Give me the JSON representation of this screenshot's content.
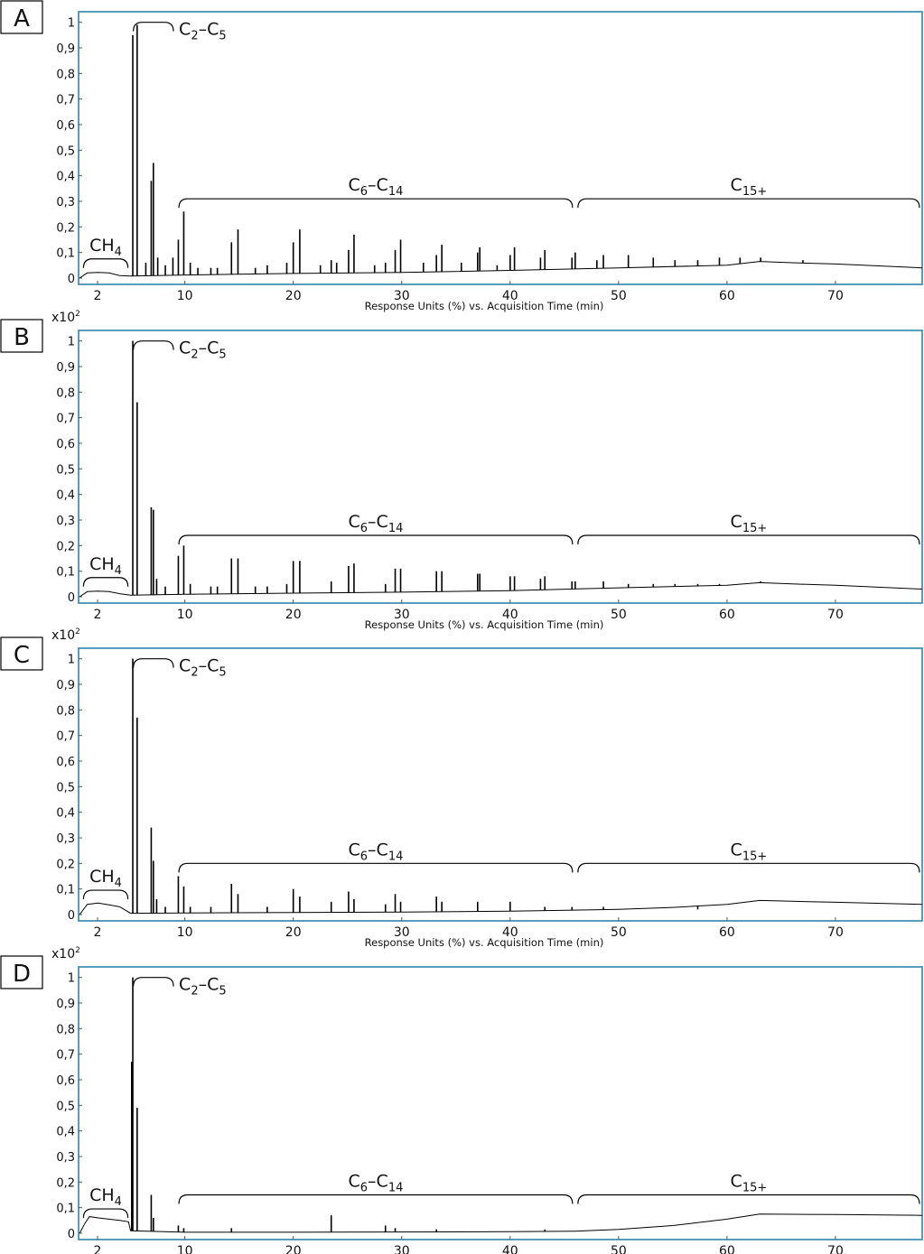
{
  "chart_data": [
    {
      "type": "line",
      "panel_label": "A",
      "multiplier": "",
      "xlabel": "Response Units (%) vs. Acquisition Time (min)",
      "xticks": [
        "2",
        "10",
        "20",
        "30",
        "40",
        "50",
        "60",
        "70"
      ],
      "yticks": [
        "0",
        "0,1",
        "0,2",
        "0,3",
        "0,4",
        "0,5",
        "0,6",
        "0,7",
        "0,8",
        "0,9",
        "1"
      ],
      "xlim": [
        0.2,
        78
      ],
      "ylim": [
        0,
        1.02
      ],
      "baseline": [
        [
          0.3,
          0.0
        ],
        [
          1,
          0.02
        ],
        [
          2,
          0.022
        ],
        [
          3,
          0.02
        ],
        [
          4,
          0.01
        ],
        [
          5,
          0.008
        ],
        [
          10,
          0.012
        ],
        [
          20,
          0.018
        ],
        [
          30,
          0.022
        ],
        [
          40,
          0.03
        ],
        [
          50,
          0.04
        ],
        [
          60,
          0.05
        ],
        [
          63,
          0.065
        ],
        [
          66,
          0.06
        ],
        [
          70,
          0.055
        ],
        [
          78,
          0.04
        ]
      ],
      "peaks": [
        [
          5.2,
          0.95
        ],
        [
          5.6,
          0.99
        ],
        [
          6.4,
          0.06
        ],
        [
          6.9,
          0.38
        ],
        [
          7.1,
          0.45
        ],
        [
          7.5,
          0.08
        ],
        [
          8.2,
          0.05
        ],
        [
          8.9,
          0.08
        ],
        [
          9.4,
          0.15
        ],
        [
          9.9,
          0.26
        ],
        [
          10.5,
          0.06
        ],
        [
          11.2,
          0.04
        ],
        [
          12.4,
          0.04
        ],
        [
          13.0,
          0.04
        ],
        [
          14.3,
          0.14
        ],
        [
          14.9,
          0.19
        ],
        [
          16.5,
          0.04
        ],
        [
          17.6,
          0.05
        ],
        [
          19.4,
          0.06
        ],
        [
          20.0,
          0.14
        ],
        [
          20.6,
          0.19
        ],
        [
          22.5,
          0.05
        ],
        [
          23.5,
          0.07
        ],
        [
          24.0,
          0.06
        ],
        [
          25.1,
          0.11
        ],
        [
          25.6,
          0.17
        ],
        [
          27.5,
          0.05
        ],
        [
          28.5,
          0.06
        ],
        [
          29.4,
          0.11
        ],
        [
          29.9,
          0.15
        ],
        [
          32.0,
          0.06
        ],
        [
          33.2,
          0.09
        ],
        [
          33.7,
          0.13
        ],
        [
          35.5,
          0.06
        ],
        [
          37.0,
          0.1
        ],
        [
          37.2,
          0.12
        ],
        [
          38.8,
          0.05
        ],
        [
          40.0,
          0.09
        ],
        [
          40.4,
          0.12
        ],
        [
          42.8,
          0.08
        ],
        [
          43.2,
          0.11
        ],
        [
          45.7,
          0.08
        ],
        [
          46.0,
          0.1
        ],
        [
          48.0,
          0.07
        ],
        [
          48.6,
          0.09
        ],
        [
          50.9,
          0.09
        ],
        [
          53.2,
          0.08
        ],
        [
          55.2,
          0.07
        ],
        [
          57.3,
          0.07
        ],
        [
          59.3,
          0.08
        ],
        [
          61.2,
          0.08
        ],
        [
          63.1,
          0.08
        ],
        [
          67.0,
          0.07
        ]
      ],
      "annotations": [
        {
          "base": "CH",
          "sub": "4",
          "x1": 0.4,
          "x2": 5.0,
          "y": 0.075
        },
        {
          "base": "C",
          "sub": "2",
          "mid": "–C",
          "sub2": "5",
          "x1": 5.0,
          "x2": 9.2,
          "y": 1.0
        },
        {
          "base": "C",
          "sub": "6",
          "mid": "–C",
          "sub2": "14",
          "x1": 9.2,
          "x2": 46.0,
          "y": 0.31
        },
        {
          "base": "C",
          "sub": "15+",
          "x1": 46.0,
          "x2": 78.0,
          "y": 0.31
        }
      ]
    },
    {
      "type": "line",
      "panel_label": "B",
      "multiplier": "x10",
      "multiplier_exp": "2",
      "xlabel": "Response Units (%) vs. Acquisition Time (min)",
      "xticks": [
        "2",
        "10",
        "20",
        "30",
        "40",
        "50",
        "60",
        "70"
      ],
      "yticks": [
        "0",
        "0,1",
        "0,2",
        "0,3",
        "0,4",
        "0,5",
        "0,6",
        "0,7",
        "0,8",
        "0,9",
        "1"
      ],
      "xlim": [
        0.2,
        78
      ],
      "ylim": [
        0,
        1.02
      ],
      "baseline": [
        [
          0.3,
          0.0
        ],
        [
          1,
          0.02
        ],
        [
          2,
          0.022
        ],
        [
          3,
          0.02
        ],
        [
          4,
          0.012
        ],
        [
          5,
          0.006
        ],
        [
          10,
          0.01
        ],
        [
          20,
          0.014
        ],
        [
          30,
          0.018
        ],
        [
          40,
          0.024
        ],
        [
          50,
          0.035
        ],
        [
          60,
          0.045
        ],
        [
          63,
          0.055
        ],
        [
          66,
          0.05
        ],
        [
          70,
          0.045
        ],
        [
          78,
          0.03
        ]
      ],
      "peaks": [
        [
          5.2,
          1.0
        ],
        [
          5.6,
          0.76
        ],
        [
          6.9,
          0.35
        ],
        [
          7.1,
          0.34
        ],
        [
          7.4,
          0.07
        ],
        [
          8.2,
          0.04
        ],
        [
          9.4,
          0.16
        ],
        [
          9.9,
          0.2
        ],
        [
          10.5,
          0.05
        ],
        [
          12.4,
          0.04
        ],
        [
          13.0,
          0.04
        ],
        [
          14.3,
          0.15
        ],
        [
          14.9,
          0.15
        ],
        [
          16.5,
          0.04
        ],
        [
          17.6,
          0.04
        ],
        [
          19.4,
          0.05
        ],
        [
          20.0,
          0.14
        ],
        [
          20.6,
          0.14
        ],
        [
          23.5,
          0.06
        ],
        [
          25.1,
          0.12
        ],
        [
          25.6,
          0.13
        ],
        [
          28.5,
          0.05
        ],
        [
          29.4,
          0.11
        ],
        [
          29.9,
          0.11
        ],
        [
          33.2,
          0.1
        ],
        [
          33.7,
          0.1
        ],
        [
          37.0,
          0.09
        ],
        [
          37.2,
          0.09
        ],
        [
          40.0,
          0.08
        ],
        [
          40.4,
          0.08
        ],
        [
          42.8,
          0.07
        ],
        [
          43.2,
          0.08
        ],
        [
          45.7,
          0.06
        ],
        [
          46.0,
          0.06
        ],
        [
          48.6,
          0.06
        ],
        [
          50.9,
          0.05
        ],
        [
          53.2,
          0.05
        ],
        [
          55.2,
          0.05
        ],
        [
          57.3,
          0.05
        ],
        [
          59.3,
          0.05
        ],
        [
          61.2,
          0.05
        ],
        [
          63.1,
          0.06
        ],
        [
          67.0,
          0.05
        ]
      ],
      "annotations": [
        {
          "base": "CH",
          "sub": "4",
          "x1": 0.4,
          "x2": 5.0,
          "y": 0.075
        },
        {
          "base": "C",
          "sub": "2",
          "mid": "–C",
          "sub2": "5",
          "x1": 5.0,
          "x2": 9.2,
          "y": 1.0
        },
        {
          "base": "C",
          "sub": "6",
          "mid": "–C",
          "sub2": "14",
          "x1": 9.2,
          "x2": 46.0,
          "y": 0.24
        },
        {
          "base": "C",
          "sub": "15+",
          "x1": 46.0,
          "x2": 78.0,
          "y": 0.24
        }
      ]
    },
    {
      "type": "line",
      "panel_label": "C",
      "multiplier": "x10",
      "multiplier_exp": "2",
      "xlabel": "Response Units (%) vs. Acquisition Time (min)",
      "xticks": [
        "2",
        "10",
        "20",
        "30",
        "40",
        "50",
        "60",
        "70"
      ],
      "yticks": [
        "0",
        "0,1",
        "0,2",
        "0,3",
        "0,4",
        "0,5",
        "0,6",
        "0,7",
        "0,8",
        "0,9",
        "1"
      ],
      "xlim": [
        0.2,
        78
      ],
      "ylim": [
        0,
        1.02
      ],
      "baseline": [
        [
          0.3,
          0.0
        ],
        [
          1,
          0.04
        ],
        [
          2,
          0.045
        ],
        [
          3,
          0.038
        ],
        [
          4,
          0.03
        ],
        [
          5,
          0.005
        ],
        [
          10,
          0.006
        ],
        [
          20,
          0.008
        ],
        [
          30,
          0.01
        ],
        [
          40,
          0.013
        ],
        [
          50,
          0.02
        ],
        [
          55,
          0.028
        ],
        [
          60,
          0.04
        ],
        [
          63,
          0.055
        ],
        [
          66,
          0.052
        ],
        [
          70,
          0.048
        ],
        [
          78,
          0.04
        ]
      ],
      "peaks": [
        [
          5.2,
          1.0
        ],
        [
          5.6,
          0.77
        ],
        [
          6.9,
          0.34
        ],
        [
          7.1,
          0.21
        ],
        [
          7.4,
          0.06
        ],
        [
          8.2,
          0.03
        ],
        [
          9.4,
          0.15
        ],
        [
          9.9,
          0.11
        ],
        [
          10.5,
          0.03
        ],
        [
          12.4,
          0.03
        ],
        [
          14.3,
          0.12
        ],
        [
          14.9,
          0.08
        ],
        [
          17.6,
          0.03
        ],
        [
          20.0,
          0.1
        ],
        [
          20.6,
          0.07
        ],
        [
          23.5,
          0.05
        ],
        [
          25.1,
          0.09
        ],
        [
          25.6,
          0.06
        ],
        [
          28.5,
          0.04
        ],
        [
          29.4,
          0.08
        ],
        [
          29.9,
          0.05
        ],
        [
          33.2,
          0.07
        ],
        [
          33.7,
          0.05
        ],
        [
          37.0,
          0.05
        ],
        [
          40.0,
          0.05
        ],
        [
          43.2,
          0.03
        ],
        [
          45.7,
          0.03
        ],
        [
          48.6,
          0.03
        ],
        [
          53.2,
          0.025
        ],
        [
          57.3,
          0.02
        ]
      ],
      "annotations": [
        {
          "base": "CH",
          "sub": "4",
          "x1": 0.4,
          "x2": 5.0,
          "y": 0.095
        },
        {
          "base": "C",
          "sub": "2",
          "mid": "–C",
          "sub2": "5",
          "x1": 5.0,
          "x2": 9.2,
          "y": 1.0
        },
        {
          "base": "C",
          "sub": "6",
          "mid": "–C",
          "sub2": "14",
          "x1": 9.2,
          "x2": 46.0,
          "y": 0.2
        },
        {
          "base": "C",
          "sub": "15+",
          "x1": 46.0,
          "x2": 78.0,
          "y": 0.2
        }
      ]
    },
    {
      "type": "line",
      "panel_label": "D",
      "multiplier": "x10",
      "multiplier_exp": "2",
      "xlabel": "",
      "xticks": [
        "2",
        "10",
        "20",
        "30",
        "40",
        "50",
        "60",
        "70"
      ],
      "yticks": [
        "0",
        "0,1",
        "0,2",
        "0,3",
        "0,4",
        "0,5",
        "0,6",
        "0,7",
        "0,8",
        "0,9",
        "1"
      ],
      "xlim": [
        0.2,
        78
      ],
      "ylim": [
        0,
        1.02
      ],
      "baseline": [
        [
          0.3,
          0.0
        ],
        [
          0.8,
          0.04
        ],
        [
          1.2,
          0.065
        ],
        [
          2,
          0.06
        ],
        [
          3,
          0.055
        ],
        [
          4,
          0.05
        ],
        [
          4.8,
          0.045
        ],
        [
          5.0,
          0.01
        ],
        [
          10,
          0.004
        ],
        [
          20,
          0.004
        ],
        [
          30,
          0.005
        ],
        [
          40,
          0.006
        ],
        [
          46,
          0.008
        ],
        [
          50,
          0.015
        ],
        [
          55,
          0.03
        ],
        [
          60,
          0.055
        ],
        [
          63,
          0.075
        ],
        [
          66,
          0.074
        ],
        [
          70,
          0.073
        ],
        [
          78,
          0.07
        ]
      ],
      "peaks": [
        [
          5.1,
          0.67
        ],
        [
          5.2,
          1.0
        ],
        [
          5.6,
          0.49
        ],
        [
          6.9,
          0.15
        ],
        [
          7.1,
          0.06
        ],
        [
          9.4,
          0.03
        ],
        [
          9.9,
          0.02
        ],
        [
          14.3,
          0.02
        ],
        [
          23.5,
          0.07
        ],
        [
          28.5,
          0.03
        ],
        [
          29.4,
          0.02
        ],
        [
          33.2,
          0.015
        ],
        [
          43.2,
          0.015
        ]
      ],
      "annotations": [
        {
          "base": "CH",
          "sub": "4",
          "x1": 0.4,
          "x2": 5.0,
          "y": 0.095
        },
        {
          "base": "C",
          "sub": "2",
          "mid": "–C",
          "sub2": "5",
          "x1": 5.0,
          "x2": 9.2,
          "y": 1.0
        },
        {
          "base": "C",
          "sub": "6",
          "mid": "–C",
          "sub2": "14",
          "x1": 9.2,
          "x2": 46.0,
          "y": 0.15
        },
        {
          "base": "C",
          "sub": "15+",
          "x1": 46.0,
          "x2": 78.0,
          "y": 0.15
        }
      ]
    }
  ],
  "colors": {
    "frame": "#2e86ab",
    "trace": "#000000",
    "text": "#111111"
  }
}
